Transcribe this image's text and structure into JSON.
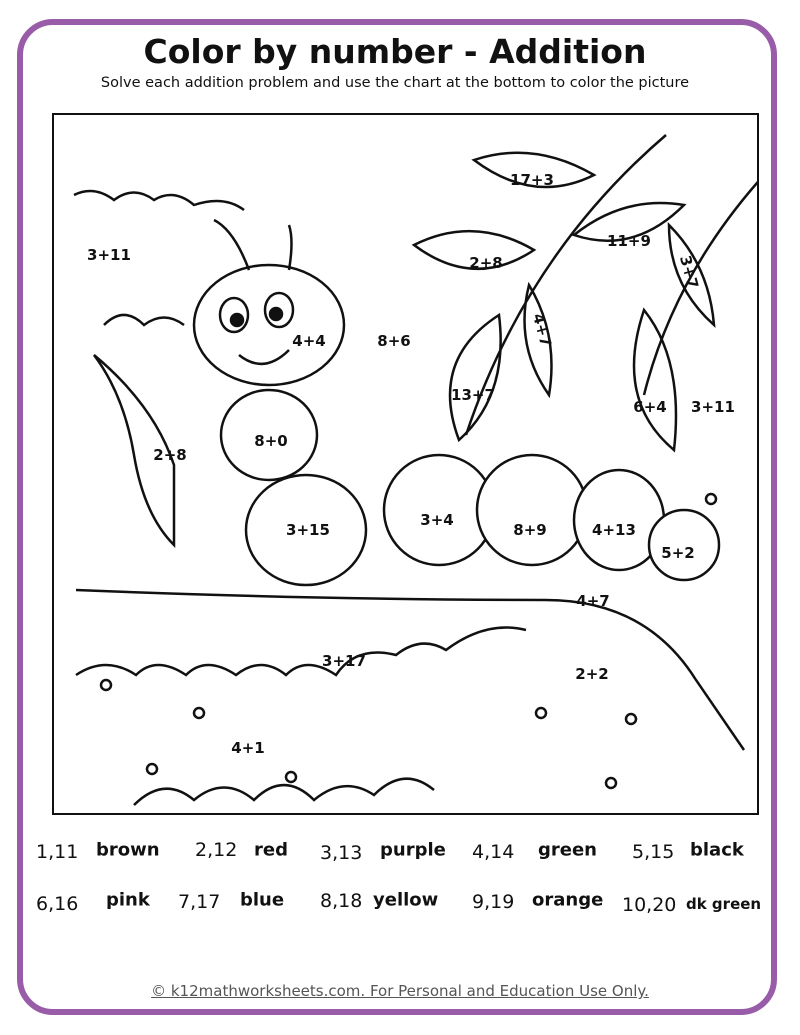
{
  "title": "Color by number - Addition",
  "subtitle": "Solve each addition problem and use the chart at the bottom to color the picture",
  "problems": [
    "17+3",
    "3+11",
    "2+8",
    "11+9",
    "3+7",
    "4+7",
    "4+4",
    "8+6",
    "13+7",
    "6+4",
    "3+11",
    "2+8",
    "8+0",
    "3+15",
    "3+4",
    "8+9",
    "4+13",
    "5+2",
    "4+7",
    "3+17",
    "2+2",
    "4+1"
  ],
  "color_key": [
    {
      "numbers": "1,11",
      "color": "brown"
    },
    {
      "numbers": "2,12",
      "color": "red"
    },
    {
      "numbers": "3,13",
      "color": "purple"
    },
    {
      "numbers": "4,14",
      "color": "green"
    },
    {
      "numbers": "5,15",
      "color": "black"
    },
    {
      "numbers": "6,16",
      "color": "pink"
    },
    {
      "numbers": "7,17",
      "color": "blue"
    },
    {
      "numbers": "8,18",
      "color": "yellow"
    },
    {
      "numbers": "9,19",
      "color": "orange"
    },
    {
      "numbers": "10,20",
      "color": "dk green"
    }
  ],
  "footer": "© k12mathworksheets.com. For Personal and Education Use Only.",
  "colors": {
    "border": "#985ca8"
  }
}
